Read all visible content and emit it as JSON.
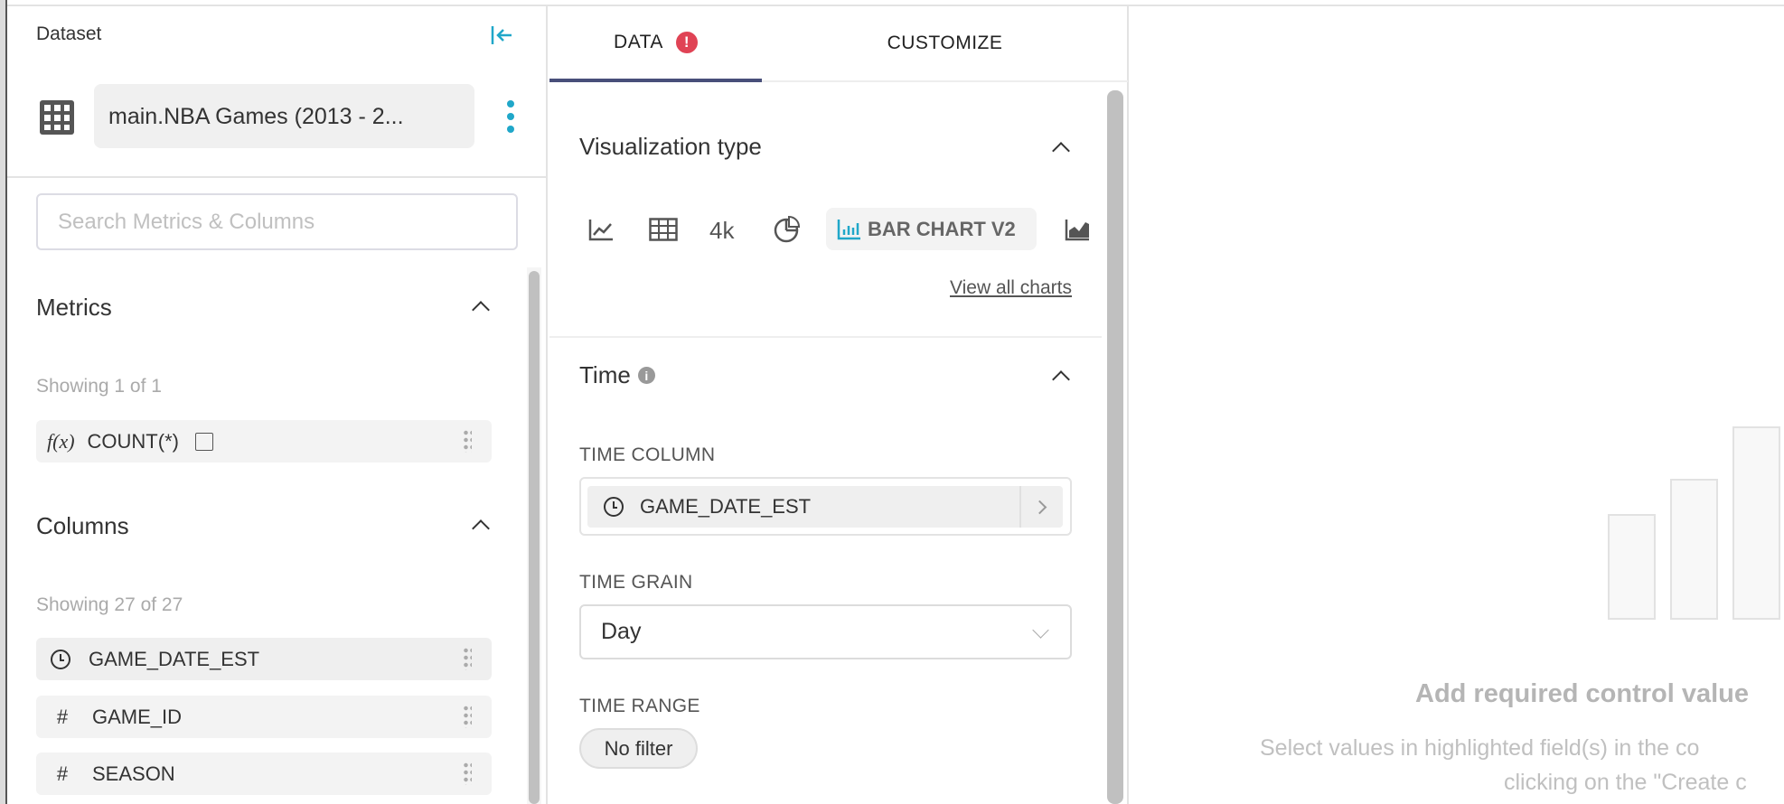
{
  "dataset": {
    "header": "Dataset",
    "name": "main.NBA Games (2013 - 2...",
    "search_placeholder": "Search Metrics & Columns"
  },
  "metrics": {
    "title": "Metrics",
    "showing": "Showing 1 of 1",
    "items": [
      {
        "icon": "function-icon",
        "icon_text": "f(x)",
        "label": "COUNT(*)"
      }
    ]
  },
  "columns": {
    "title": "Columns",
    "showing": "Showing 27 of 27",
    "items": [
      {
        "icon": "clock-icon",
        "label": "GAME_DATE_EST"
      },
      {
        "icon": "hash-icon",
        "icon_text": "#",
        "label": "GAME_ID"
      },
      {
        "icon": "hash-icon",
        "icon_text": "#",
        "label": "SEASON"
      }
    ]
  },
  "tabs": [
    {
      "label": "DATA",
      "active": true,
      "error": "!"
    },
    {
      "label": "CUSTOMIZE",
      "active": false
    }
  ],
  "viz": {
    "title": "Visualization type",
    "big_number_label": "4k",
    "selected": "BAR CHART V2",
    "view_all": "View all charts"
  },
  "time": {
    "title": "Time",
    "info": "i",
    "column_label": "TIME COLUMN",
    "column_value": "GAME_DATE_EST",
    "grain_label": "TIME GRAIN",
    "grain_value": "Day",
    "range_label": "TIME RANGE",
    "range_value": "No filter"
  },
  "empty_state": {
    "title": "Add required control value",
    "line1": "Select values in highlighted field(s) in the co",
    "line2": "clicking on the \"Create c"
  },
  "colors": {
    "accent": "#20a7c9",
    "tab_underline": "#484f7a",
    "error": "#e04355"
  }
}
